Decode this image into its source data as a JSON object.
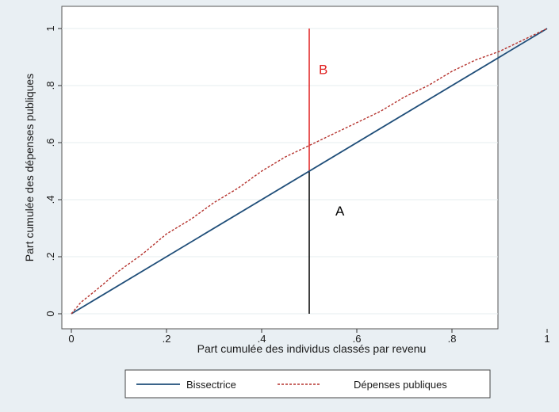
{
  "chart_data": {
    "type": "line",
    "xlabel": "Part cumulée des individus classés par revenu",
    "ylabel": "Part cumulée des dépenses publiques",
    "xlim": [
      0,
      1
    ],
    "ylim": [
      0,
      1
    ],
    "x_ticks": [
      {
        "value": 0,
        "label": "0"
      },
      {
        "value": 0.2,
        "label": ".2"
      },
      {
        "value": 0.4,
        "label": ".4"
      },
      {
        "value": 0.6,
        "label": ".6"
      },
      {
        "value": 0.8,
        "label": ".8"
      },
      {
        "value": 1,
        "label": "1"
      }
    ],
    "y_ticks": [
      {
        "value": 0,
        "label": "0"
      },
      {
        "value": 0.2,
        "label": ".2"
      },
      {
        "value": 0.4,
        "label": ".4"
      },
      {
        "value": 0.6,
        "label": ".6"
      },
      {
        "value": 0.8,
        "label": ".8"
      },
      {
        "value": 1,
        "label": "1"
      }
    ],
    "grid": "horizontal",
    "legend_position": "bottom",
    "series": [
      {
        "name": "Bissectrice",
        "style": "solid",
        "color": "#1f4e79",
        "x": [
          0,
          1
        ],
        "y": [
          0,
          1
        ]
      },
      {
        "name": "Dépenses publiques",
        "style": "dashed",
        "color": "#b5332e",
        "x": [
          0,
          0.02,
          0.05,
          0.1,
          0.15,
          0.2,
          0.25,
          0.3,
          0.35,
          0.4,
          0.45,
          0.5,
          0.55,
          0.6,
          0.65,
          0.7,
          0.75,
          0.8,
          0.85,
          0.9,
          0.95,
          1
        ],
        "y": [
          0,
          0.04,
          0.08,
          0.15,
          0.21,
          0.28,
          0.33,
          0.39,
          0.44,
          0.5,
          0.55,
          0.59,
          0.63,
          0.67,
          0.71,
          0.76,
          0.8,
          0.85,
          0.89,
          0.92,
          0.96,
          1
        ]
      }
    ],
    "annotations": [
      {
        "text": "B",
        "x": 0.52,
        "y": 0.84,
        "color": "#e02020"
      },
      {
        "text": "A",
        "x": 0.555,
        "y": 0.345,
        "color": "#000000"
      }
    ],
    "vlines": [
      {
        "x": 0.5,
        "y_from": 0,
        "y_to": 0.5,
        "color": "#000000"
      },
      {
        "x": 0.5,
        "y_from": 0.5,
        "y_to": 1,
        "color": "#e02020"
      }
    ]
  },
  "colors": {
    "background": "#e9eff3",
    "plot_background": "#ffffff",
    "gridline": "#e6ecef"
  }
}
